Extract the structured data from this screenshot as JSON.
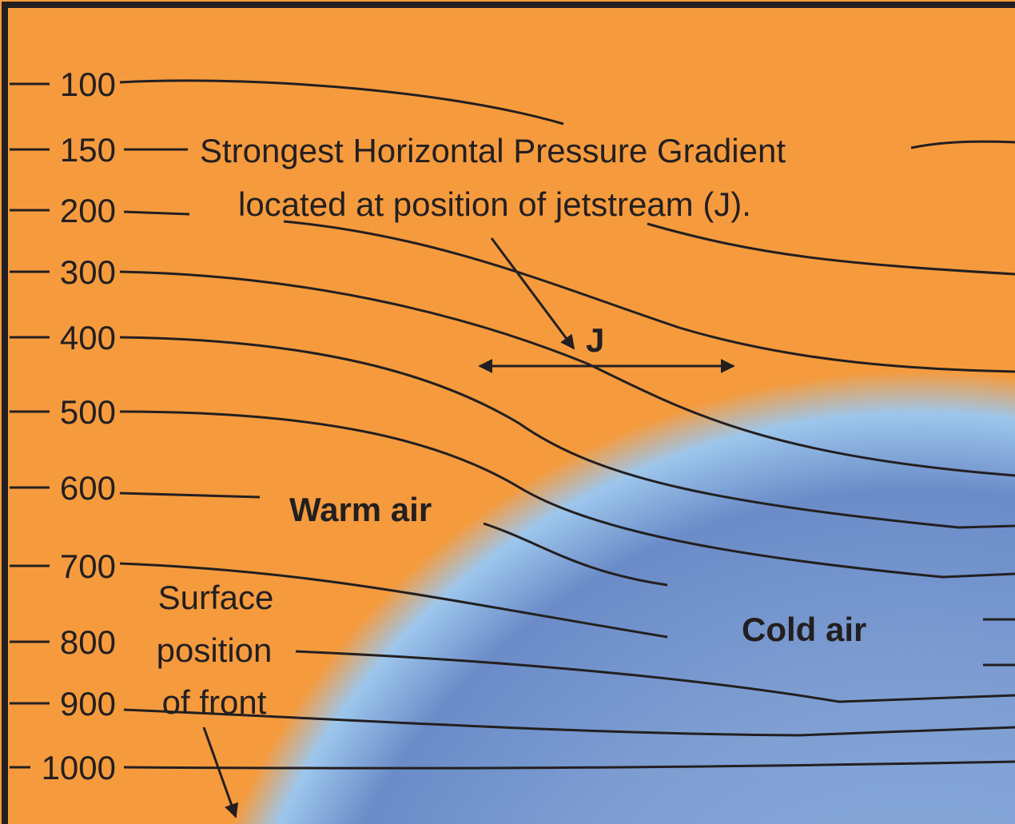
{
  "levels": [
    "100",
    "150",
    "200",
    "300",
    "400",
    "500",
    "600",
    "700",
    "800",
    "900",
    "1000"
  ],
  "annotation": {
    "line1": "Strongest Horizontal Pressure Gradient",
    "line2": "located at position of jetstream (J)."
  },
  "jet_label": "J",
  "warm_air": "Warm air",
  "cold_air": "Cold air",
  "front_label": [
    "Surface",
    "position",
    "of front"
  ]
}
